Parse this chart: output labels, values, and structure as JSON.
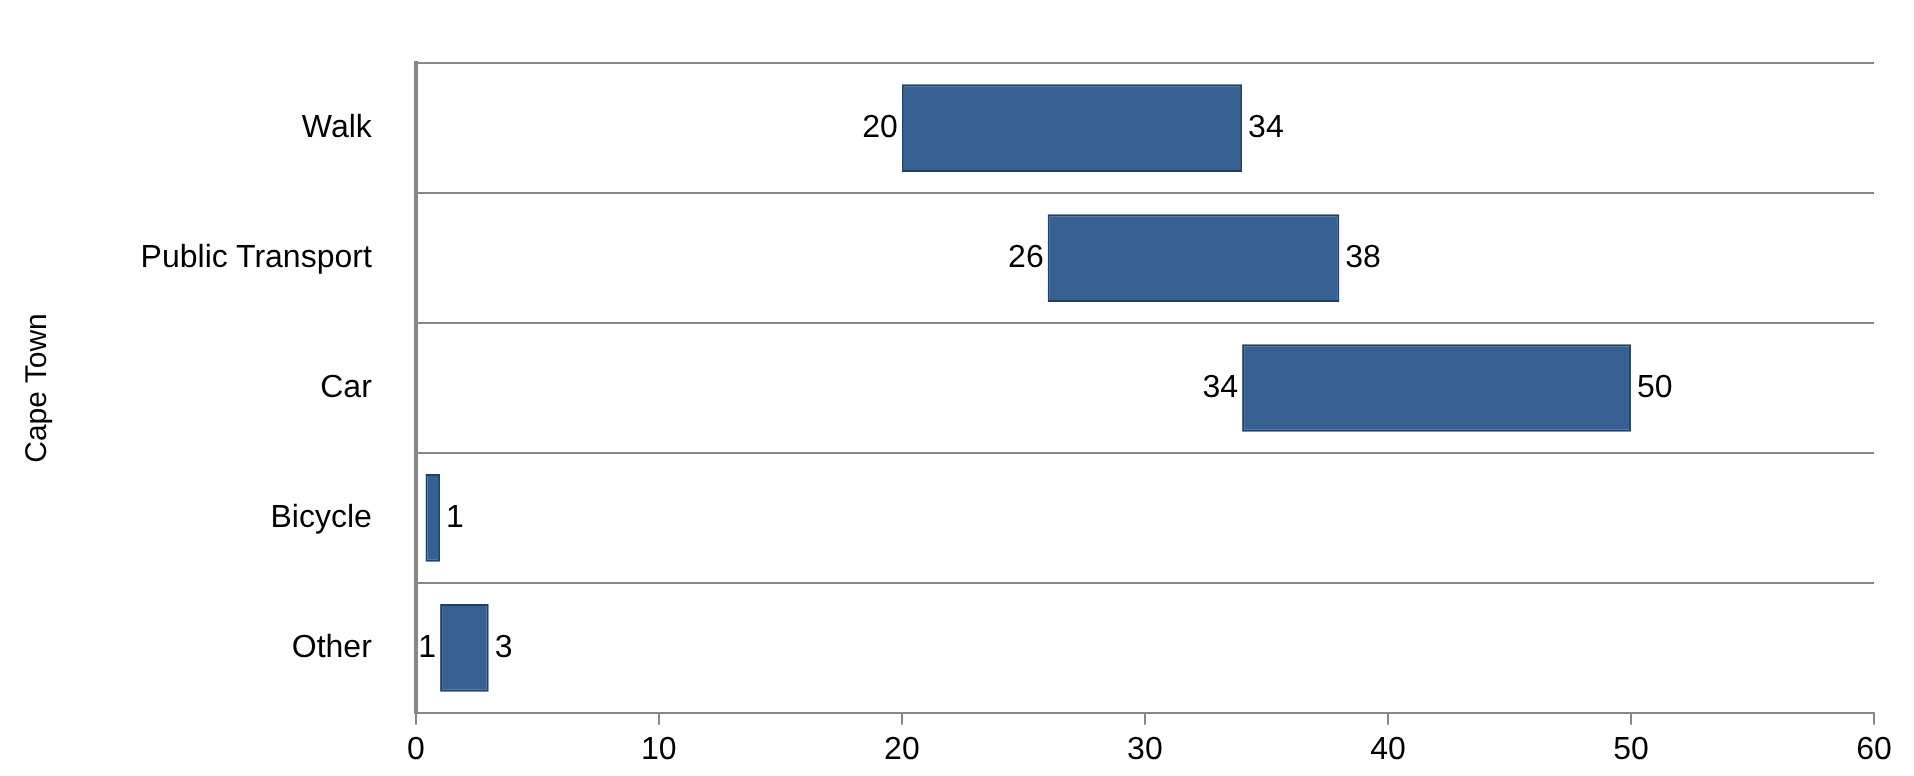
{
  "chart_data": {
    "type": "bar",
    "orientation": "horizontal",
    "ylabel": "Cape Town",
    "categories": [
      "Walk",
      "Public Transport",
      "Car",
      "Bicycle",
      "Other"
    ],
    "base": [
      20,
      26,
      34,
      0.4,
      1
    ],
    "values": [
      14,
      12,
      16,
      0.6,
      2
    ],
    "value_labels": [
      "34",
      "38",
      "50",
      "1",
      "3"
    ],
    "color": "#376092",
    "xlim": [
      0,
      60
    ],
    "xticks": [
      0,
      10,
      20,
      30,
      40,
      50,
      60
    ],
    "grid": "y",
    "annotations": [
      {
        "text": "20",
        "x": 20,
        "y": "Walk"
      },
      {
        "text": "26",
        "x": 26,
        "y": "Public Transport"
      },
      {
        "text": "34",
        "x": 34,
        "y": "Car"
      },
      {
        "text": "1",
        "x": 1,
        "y": "Other"
      }
    ]
  }
}
